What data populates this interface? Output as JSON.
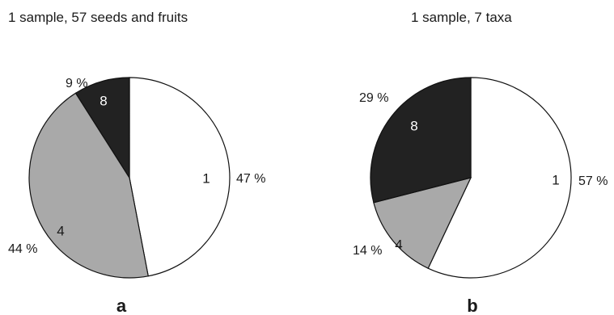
{
  "chart_data": [
    {
      "type": "pie",
      "title": "1 sample, 57 seeds and fruits",
      "panel_label": "a",
      "slices": [
        {
          "label": "1",
          "value": 47,
          "percent_label": "47 %",
          "color": "#ffffff"
        },
        {
          "label": "4",
          "value": 44,
          "percent_label": "44 %",
          "color": "#a9a9a9"
        },
        {
          "label": "8",
          "value": 9,
          "percent_label": "9 %",
          "color": "#222222"
        }
      ]
    },
    {
      "type": "pie",
      "title": "1 sample, 7 taxa",
      "panel_label": "b",
      "slices": [
        {
          "label": "1",
          "value": 57,
          "percent_label": "57 %",
          "color": "#ffffff"
        },
        {
          "label": "4",
          "value": 14,
          "percent_label": "14 %",
          "color": "#a9a9a9"
        },
        {
          "label": "8",
          "value": 29,
          "percent_label": "29 %",
          "color": "#222222"
        }
      ]
    }
  ]
}
